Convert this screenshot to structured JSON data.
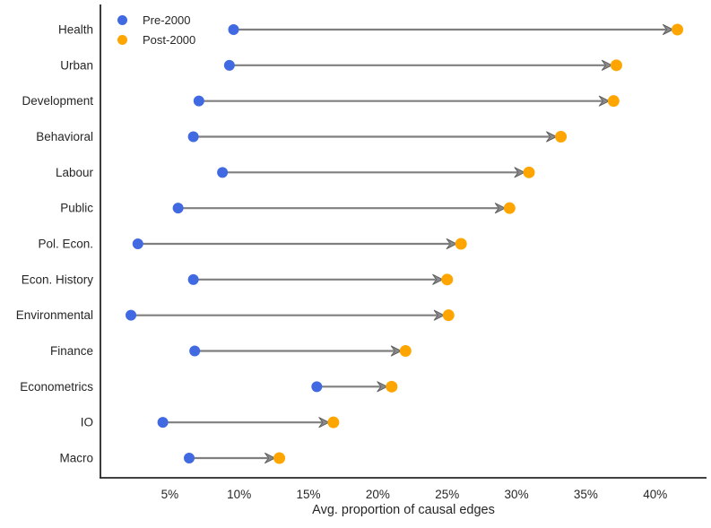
{
  "figure": {
    "background": "#ffffff",
    "text_color": "#262626",
    "spine_color": "#262626",
    "connector_color": "#7f7f7f",
    "arrow_fill": "#8a8a8a",
    "arrow_edge": "#5f5f5f"
  },
  "chart_data": {
    "type": "scatter",
    "subtype": "dumbbell-arrow",
    "title": "",
    "xlabel": "Avg. proportion of causal edges",
    "ylabel": "",
    "x_unit": "%",
    "xlim": [
      0,
      43.7
    ],
    "grid": false,
    "legend_position": "upper-left",
    "x_ticks": [
      {
        "value": 5,
        "label": "5%"
      },
      {
        "value": 10,
        "label": "10%"
      },
      {
        "value": 15,
        "label": "15%"
      },
      {
        "value": 20,
        "label": "20%"
      },
      {
        "value": 25,
        "label": "25%"
      },
      {
        "value": 30,
        "label": "30%"
      },
      {
        "value": 35,
        "label": "35%"
      },
      {
        "value": 40,
        "label": "40%"
      }
    ],
    "categories": [
      "Health",
      "Urban",
      "Development",
      "Behavioral",
      "Labour",
      "Public",
      "Pol. Econ.",
      "Econ. History",
      "Environmental",
      "Finance",
      "Econometrics",
      "IO",
      "Macro"
    ],
    "series": [
      {
        "name": "Pre-2000",
        "color": "#4169E1",
        "values": [
          9.6,
          9.3,
          7.1,
          6.7,
          8.8,
          5.6,
          2.7,
          6.7,
          2.2,
          6.8,
          15.6,
          4.5,
          6.4
        ]
      },
      {
        "name": "Post-2000",
        "color": "#FFA500",
        "values": [
          41.6,
          37.2,
          37.0,
          33.2,
          30.9,
          29.5,
          26.0,
          25.0,
          25.1,
          22.0,
          21.0,
          16.8,
          12.9
        ]
      }
    ],
    "arrows": {
      "from_series": "Pre-2000",
      "to_series": "Post-2000",
      "direction": "right"
    }
  }
}
